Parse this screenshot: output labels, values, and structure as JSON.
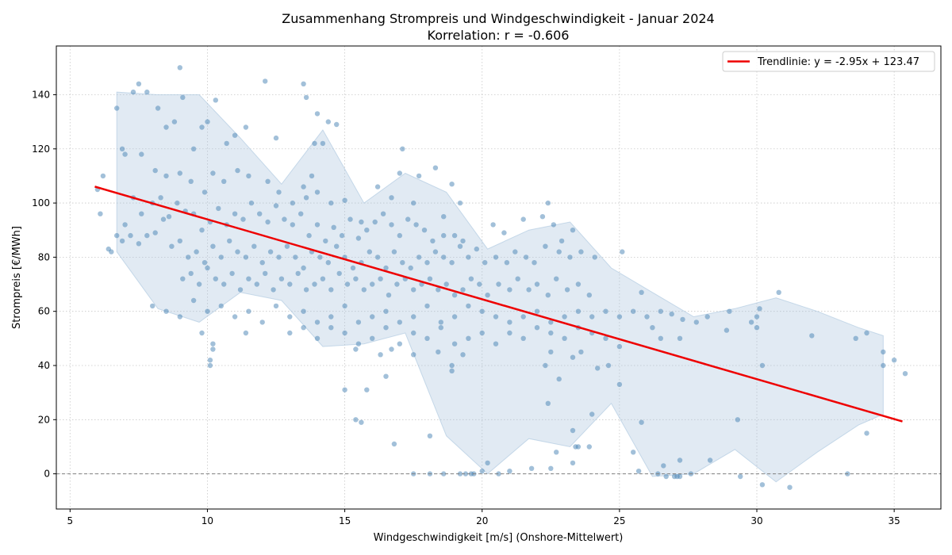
{
  "chart_data": {
    "type": "scatter",
    "title": "Zusammenhang Strompreis und Windgeschwindigkeit - Januar 2024",
    "subtitle": "Korrelation: r = -0.606",
    "xlabel": "Windgeschwindigkeit [m/s] (Onshore-Mittelwert)",
    "ylabel": "Strompreis [€/MWh]",
    "xlim": [
      4.5,
      36.7
    ],
    "ylim": [
      -13,
      158
    ],
    "xticks": [
      5,
      10,
      15,
      20,
      25,
      30,
      35
    ],
    "yticks": [
      0,
      20,
      40,
      60,
      80,
      100,
      120,
      140
    ],
    "grid": true,
    "legend_position": "top-right",
    "colors": {
      "points": "#4682b4",
      "band": "#a9c4dd",
      "trend": "#ee0000",
      "zero_line": "#808080"
    },
    "reference_line_y": 0,
    "trendline": {
      "label": "Trendlinie: y = -2.95x + 123.47",
      "slope": -2.95,
      "intercept": 123.47,
      "x_range": [
        5.9,
        35.3
      ]
    },
    "band": {
      "x": [
        6.7,
        8.2,
        9.7,
        11.2,
        12.7,
        14.2,
        15.7,
        17.2,
        18.7,
        20.2,
        21.7,
        23.2,
        24.7,
        26.2,
        27.7,
        29.2,
        30.7,
        32.2,
        33.7,
        34.6
      ],
      "lower": [
        82,
        61,
        56,
        67,
        64,
        47,
        48,
        52,
        14,
        0,
        13,
        10,
        26,
        -1,
        0,
        9,
        -3,
        8,
        18,
        22
      ],
      "upper": [
        141,
        140,
        140,
        124,
        107,
        127,
        100,
        111,
        104,
        83,
        90,
        93,
        76,
        67,
        58,
        61,
        65,
        60,
        54,
        51
      ]
    },
    "points": [
      [
        6.7,
        135
      ],
      [
        6.9,
        120
      ],
      [
        7.3,
        141
      ],
      [
        7.5,
        144
      ],
      [
        7.8,
        141
      ],
      [
        8.2,
        135
      ],
      [
        8.5,
        128
      ],
      [
        8.8,
        130
      ],
      [
        9.0,
        150
      ],
      [
        9.1,
        139
      ],
      [
        9.5,
        120
      ],
      [
        9.8,
        128
      ],
      [
        10.0,
        130
      ],
      [
        10.3,
        138
      ],
      [
        10.7,
        122
      ],
      [
        11.0,
        125
      ],
      [
        11.4,
        128
      ],
      [
        12.1,
        145
      ],
      [
        12.5,
        124
      ],
      [
        13.5,
        144
      ],
      [
        13.6,
        139
      ],
      [
        14.0,
        133
      ],
      [
        14.4,
        130
      ],
      [
        14.7,
        129
      ],
      [
        13.9,
        122
      ],
      [
        14.2,
        122
      ],
      [
        13.5,
        106
      ],
      [
        13.8,
        110
      ],
      [
        7.0,
        118
      ],
      [
        7.6,
        118
      ],
      [
        8.1,
        112
      ],
      [
        8.5,
        110
      ],
      [
        9.0,
        111
      ],
      [
        9.4,
        108
      ],
      [
        9.9,
        104
      ],
      [
        10.2,
        111
      ],
      [
        10.6,
        108
      ],
      [
        11.1,
        112
      ],
      [
        11.5,
        110
      ],
      [
        12.2,
        108
      ],
      [
        12.6,
        104
      ],
      [
        13.1,
        100
      ],
      [
        13.6,
        102
      ],
      [
        14.0,
        104
      ],
      [
        14.5,
        100
      ],
      [
        15.0,
        101
      ],
      [
        15.6,
        93
      ],
      [
        16.2,
        106
      ],
      [
        16.7,
        102
      ],
      [
        17.0,
        111
      ],
      [
        17.1,
        120
      ],
      [
        17.7,
        110
      ],
      [
        17.5,
        100
      ],
      [
        18.3,
        113
      ],
      [
        18.9,
        107
      ],
      [
        19.2,
        100
      ],
      [
        18.6,
        95
      ],
      [
        6.0,
        105
      ],
      [
        6.1,
        96
      ],
      [
        6.2,
        110
      ],
      [
        6.4,
        83
      ],
      [
        6.7,
        88
      ],
      [
        7.0,
        92
      ],
      [
        7.3,
        102
      ],
      [
        7.6,
        96
      ],
      [
        8.0,
        100
      ],
      [
        8.3,
        102
      ],
      [
        8.6,
        95
      ],
      [
        8.9,
        100
      ],
      [
        9.2,
        97
      ],
      [
        9.5,
        96
      ],
      [
        9.8,
        90
      ],
      [
        10.1,
        93
      ],
      [
        10.4,
        98
      ],
      [
        10.7,
        92
      ],
      [
        11.0,
        96
      ],
      [
        11.3,
        94
      ],
      [
        11.6,
        100
      ],
      [
        11.9,
        96
      ],
      [
        12.2,
        93
      ],
      [
        12.5,
        99
      ],
      [
        12.8,
        94
      ],
      [
        13.1,
        92
      ],
      [
        13.4,
        96
      ],
      [
        13.7,
        88
      ],
      [
        14.0,
        92
      ],
      [
        14.3,
        86
      ],
      [
        14.6,
        91
      ],
      [
        14.9,
        88
      ],
      [
        15.2,
        94
      ],
      [
        15.5,
        87
      ],
      [
        15.8,
        90
      ],
      [
        16.1,
        93
      ],
      [
        16.4,
        96
      ],
      [
        16.7,
        92
      ],
      [
        17.0,
        88
      ],
      [
        17.3,
        94
      ],
      [
        17.6,
        92
      ],
      [
        17.9,
        90
      ],
      [
        18.2,
        86
      ],
      [
        18.6,
        88
      ],
      [
        19.0,
        88
      ],
      [
        19.3,
        86
      ],
      [
        6.5,
        82
      ],
      [
        6.9,
        86
      ],
      [
        7.2,
        88
      ],
      [
        7.5,
        85
      ],
      [
        7.8,
        88
      ],
      [
        8.1,
        89
      ],
      [
        8.4,
        94
      ],
      [
        8.7,
        84
      ],
      [
        9.0,
        86
      ],
      [
        9.3,
        80
      ],
      [
        9.6,
        82
      ],
      [
        9.9,
        78
      ],
      [
        10.2,
        84
      ],
      [
        10.5,
        80
      ],
      [
        10.8,
        86
      ],
      [
        11.1,
        82
      ],
      [
        11.4,
        80
      ],
      [
        11.7,
        84
      ],
      [
        12.0,
        78
      ],
      [
        12.3,
        82
      ],
      [
        12.6,
        80
      ],
      [
        12.9,
        84
      ],
      [
        13.2,
        80
      ],
      [
        13.5,
        76
      ],
      [
        13.8,
        82
      ],
      [
        14.1,
        80
      ],
      [
        14.4,
        78
      ],
      [
        14.7,
        84
      ],
      [
        15.0,
        80
      ],
      [
        15.3,
        76
      ],
      [
        15.6,
        78
      ],
      [
        15.9,
        82
      ],
      [
        16.2,
        80
      ],
      [
        16.5,
        76
      ],
      [
        16.8,
        82
      ],
      [
        17.1,
        78
      ],
      [
        17.4,
        76
      ],
      [
        17.7,
        80
      ],
      [
        18.0,
        78
      ],
      [
        18.3,
        82
      ],
      [
        18.6,
        80
      ],
      [
        18.9,
        78
      ],
      [
        19.2,
        84
      ],
      [
        19.5,
        80
      ],
      [
        19.8,
        83
      ],
      [
        20.1,
        78
      ],
      [
        20.5,
        80
      ],
      [
        20.9,
        78
      ],
      [
        21.2,
        82
      ],
      [
        21.6,
        80
      ],
      [
        21.9,
        78
      ],
      [
        22.3,
        84
      ],
      [
        22.8,
        82
      ],
      [
        23.2,
        80
      ],
      [
        23.6,
        82
      ],
      [
        24.1,
        80
      ],
      [
        25.1,
        82
      ],
      [
        22.4,
        100
      ],
      [
        22.2,
        95
      ],
      [
        21.5,
        94
      ],
      [
        22.6,
        92
      ],
      [
        23.3,
        90
      ],
      [
        22.9,
        86
      ],
      [
        20.4,
        92
      ],
      [
        20.8,
        89
      ],
      [
        9.1,
        72
      ],
      [
        9.4,
        74
      ],
      [
        9.7,
        70
      ],
      [
        10.0,
        76
      ],
      [
        10.3,
        72
      ],
      [
        10.6,
        70
      ],
      [
        10.9,
        74
      ],
      [
        11.2,
        68
      ],
      [
        11.5,
        72
      ],
      [
        11.8,
        70
      ],
      [
        12.1,
        74
      ],
      [
        12.4,
        68
      ],
      [
        12.7,
        72
      ],
      [
        13.0,
        70
      ],
      [
        13.3,
        74
      ],
      [
        13.6,
        68
      ],
      [
        13.9,
        70
      ],
      [
        14.2,
        72
      ],
      [
        14.5,
        68
      ],
      [
        14.8,
        74
      ],
      [
        15.1,
        70
      ],
      [
        15.4,
        72
      ],
      [
        15.7,
        68
      ],
      [
        16.0,
        70
      ],
      [
        16.3,
        72
      ],
      [
        16.6,
        66
      ],
      [
        16.9,
        70
      ],
      [
        17.2,
        72
      ],
      [
        17.5,
        68
      ],
      [
        17.8,
        70
      ],
      [
        18.1,
        72
      ],
      [
        18.4,
        68
      ],
      [
        18.7,
        70
      ],
      [
        19.0,
        66
      ],
      [
        19.3,
        68
      ],
      [
        19.6,
        72
      ],
      [
        19.9,
        70
      ],
      [
        20.2,
        66
      ],
      [
        20.6,
        70
      ],
      [
        21.0,
        68
      ],
      [
        21.3,
        72
      ],
      [
        21.7,
        68
      ],
      [
        22.0,
        70
      ],
      [
        22.4,
        66
      ],
      [
        22.7,
        72
      ],
      [
        23.1,
        68
      ],
      [
        23.5,
        70
      ],
      [
        23.9,
        66
      ],
      [
        8.0,
        62
      ],
      [
        8.5,
        60
      ],
      [
        9.0,
        58
      ],
      [
        9.5,
        64
      ],
      [
        10.0,
        60
      ],
      [
        10.5,
        62
      ],
      [
        11.0,
        58
      ],
      [
        11.5,
        60
      ],
      [
        12.0,
        56
      ],
      [
        12.5,
        62
      ],
      [
        13.0,
        58
      ],
      [
        13.5,
        60
      ],
      [
        14.0,
        56
      ],
      [
        14.5,
        58
      ],
      [
        15.0,
        62
      ],
      [
        15.5,
        56
      ],
      [
        16.0,
        58
      ],
      [
        16.5,
        60
      ],
      [
        17.0,
        56
      ],
      [
        17.5,
        58
      ],
      [
        18.0,
        62
      ],
      [
        18.5,
        56
      ],
      [
        19.0,
        58
      ],
      [
        19.5,
        62
      ],
      [
        20.0,
        60
      ],
      [
        20.5,
        58
      ],
      [
        21.0,
        56
      ],
      [
        21.5,
        58
      ],
      [
        22.0,
        60
      ],
      [
        22.5,
        56
      ],
      [
        23.0,
        58
      ],
      [
        23.5,
        60
      ],
      [
        24.0,
        58
      ],
      [
        24.5,
        60
      ],
      [
        25.0,
        58
      ],
      [
        25.5,
        60
      ],
      [
        26.0,
        58
      ],
      [
        26.5,
        60
      ],
      [
        26.9,
        59
      ],
      [
        27.3,
        57
      ],
      [
        27.8,
        56
      ],
      [
        28.2,
        58
      ],
      [
        29.0,
        60
      ],
      [
        30.1,
        61
      ],
      [
        30.8,
        67
      ],
      [
        29.8,
        56
      ],
      [
        30.0,
        54
      ],
      [
        25.8,
        67
      ],
      [
        26.2,
        54
      ],
      [
        9.8,
        52
      ],
      [
        10.2,
        48
      ],
      [
        10.1,
        40
      ],
      [
        10.1,
        42
      ],
      [
        10.2,
        46
      ],
      [
        11.4,
        52
      ],
      [
        13.0,
        52
      ],
      [
        13.5,
        54
      ],
      [
        14.0,
        50
      ],
      [
        14.5,
        54
      ],
      [
        15.0,
        52
      ],
      [
        15.5,
        48
      ],
      [
        16.0,
        50
      ],
      [
        16.5,
        54
      ],
      [
        17.0,
        48
      ],
      [
        17.5,
        52
      ],
      [
        18.0,
        50
      ],
      [
        18.5,
        54
      ],
      [
        19.0,
        48
      ],
      [
        19.5,
        50
      ],
      [
        20.0,
        52
      ],
      [
        20.5,
        48
      ],
      [
        21.0,
        52
      ],
      [
        21.5,
        50
      ],
      [
        22.0,
        54
      ],
      [
        22.5,
        52
      ],
      [
        23.0,
        50
      ],
      [
        23.5,
        54
      ],
      [
        24.0,
        52
      ],
      [
        24.5,
        50
      ],
      [
        25.0,
        47
      ],
      [
        15.4,
        46
      ],
      [
        16.3,
        44
      ],
      [
        16.7,
        46
      ],
      [
        17.5,
        44
      ],
      [
        18.4,
        45
      ],
      [
        18.9,
        40
      ],
      [
        18.9,
        38
      ],
      [
        19.3,
        44
      ],
      [
        22.3,
        40
      ],
      [
        22.5,
        45
      ],
      [
        23.3,
        43
      ],
      [
        23.6,
        45
      ],
      [
        24.2,
        39
      ],
      [
        24.6,
        40
      ],
      [
        26.5,
        50
      ],
      [
        27.2,
        50
      ],
      [
        28.9,
        53
      ],
      [
        30.0,
        58
      ],
      [
        32.0,
        51
      ],
      [
        33.6,
        50
      ],
      [
        34.0,
        52
      ],
      [
        34.6,
        45
      ],
      [
        35.0,
        42
      ],
      [
        35.4,
        37
      ],
      [
        34.6,
        40
      ],
      [
        30.2,
        40
      ],
      [
        15.0,
        31
      ],
      [
        15.8,
        31
      ],
      [
        16.5,
        36
      ],
      [
        22.8,
        35
      ],
      [
        25.0,
        33
      ],
      [
        15.4,
        20
      ],
      [
        15.6,
        19
      ],
      [
        16.8,
        11
      ],
      [
        18.1,
        14
      ],
      [
        20.2,
        4
      ],
      [
        23.3,
        16
      ],
      [
        23.3,
        4
      ],
      [
        22.7,
        8
      ],
      [
        23.4,
        10
      ],
      [
        23.5,
        10
      ],
      [
        23.9,
        10
      ],
      [
        24.0,
        22
      ],
      [
        22.4,
        26
      ],
      [
        29.3,
        20
      ],
      [
        34.0,
        15
      ],
      [
        25.5,
        8
      ],
      [
        25.8,
        19
      ],
      [
        28.3,
        5
      ],
      [
        27.2,
        5
      ],
      [
        21.8,
        2
      ],
      [
        22.5,
        2
      ],
      [
        17.5,
        0
      ],
      [
        18.1,
        0
      ],
      [
        18.6,
        0
      ],
      [
        19.2,
        0
      ],
      [
        19.4,
        0
      ],
      [
        19.6,
        0
      ],
      [
        19.7,
        0
      ],
      [
        20.0,
        1
      ],
      [
        20.6,
        0
      ],
      [
        21.0,
        1
      ],
      [
        26.6,
        3
      ],
      [
        26.4,
        0
      ],
      [
        27.0,
        -1
      ],
      [
        27.2,
        -1
      ],
      [
        27.6,
        0
      ],
      [
        29.4,
        -1
      ],
      [
        30.2,
        -4
      ],
      [
        31.2,
        -5
      ],
      [
        33.3,
        0
      ],
      [
        25.7,
        1
      ],
      [
        26.7,
        -1
      ],
      [
        27.1,
        -1
      ]
    ]
  }
}
